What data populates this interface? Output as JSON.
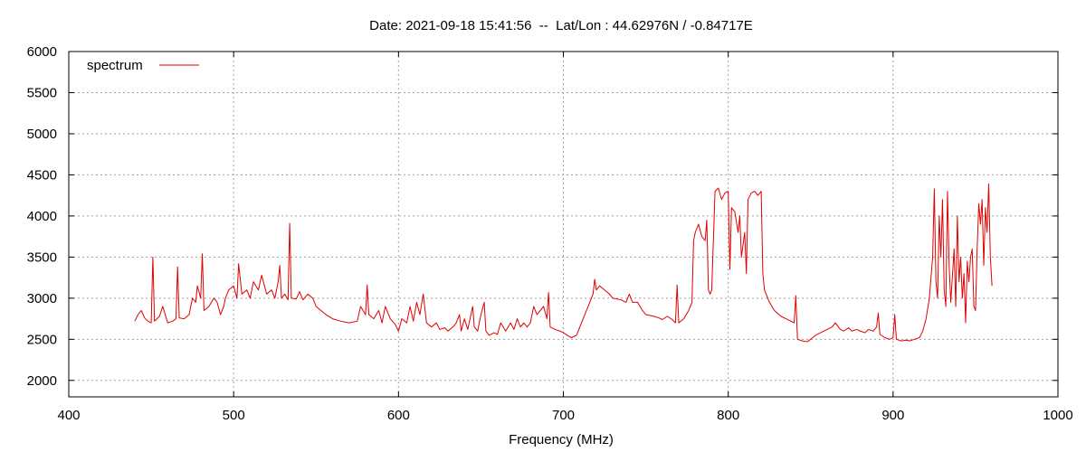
{
  "chart_data": {
    "type": "line",
    "title": "Date: 2021-09-18 15:41:56  --  Lat/Lon : 44.62976N / -0.84717E",
    "xlabel": "Frequency (MHz)",
    "ylabel": "",
    "xlim": [
      400,
      1000
    ],
    "ylim": [
      1800,
      6000
    ],
    "x_ticks": [
      400,
      500,
      600,
      700,
      800,
      900,
      1000
    ],
    "y_ticks": [
      2000,
      2500,
      3000,
      3500,
      4000,
      4500,
      5000,
      5500,
      6000
    ],
    "grid": true,
    "legend_position": "top-left",
    "series": [
      {
        "name": "spectrum",
        "color": "#e00000",
        "points": [
          [
            440,
            2720
          ],
          [
            442,
            2800
          ],
          [
            444,
            2850
          ],
          [
            446,
            2760
          ],
          [
            448,
            2720
          ],
          [
            450,
            2700
          ],
          [
            451,
            3500
          ],
          [
            452,
            2720
          ],
          [
            455,
            2780
          ],
          [
            457,
            2900
          ],
          [
            460,
            2700
          ],
          [
            463,
            2720
          ],
          [
            465,
            2750
          ],
          [
            466,
            3380
          ],
          [
            467,
            2760
          ],
          [
            470,
            2750
          ],
          [
            473,
            2800
          ],
          [
            475,
            3000
          ],
          [
            477,
            2950
          ],
          [
            478,
            3150
          ],
          [
            480,
            3000
          ],
          [
            481,
            3540
          ],
          [
            482,
            2850
          ],
          [
            485,
            2900
          ],
          [
            488,
            3000
          ],
          [
            490,
            2950
          ],
          [
            492,
            2800
          ],
          [
            494,
            2900
          ],
          [
            495,
            3000
          ],
          [
            497,
            3100
          ],
          [
            500,
            3150
          ],
          [
            502,
            3000
          ],
          [
            503,
            3420
          ],
          [
            505,
            3050
          ],
          [
            508,
            3100
          ],
          [
            510,
            3000
          ],
          [
            512,
            3200
          ],
          [
            515,
            3100
          ],
          [
            517,
            3280
          ],
          [
            520,
            3050
          ],
          [
            523,
            3100
          ],
          [
            525,
            3000
          ],
          [
            527,
            3200
          ],
          [
            528,
            3400
          ],
          [
            529,
            3000
          ],
          [
            531,
            3050
          ],
          [
            533,
            2980
          ],
          [
            534,
            3910
          ],
          [
            535,
            3000
          ],
          [
            538,
            2990
          ],
          [
            540,
            3080
          ],
          [
            542,
            2980
          ],
          [
            545,
            3050
          ],
          [
            548,
            3000
          ],
          [
            550,
            2900
          ],
          [
            553,
            2850
          ],
          [
            556,
            2800
          ],
          [
            560,
            2750
          ],
          [
            565,
            2720
          ],
          [
            570,
            2700
          ],
          [
            575,
            2720
          ],
          [
            577,
            2900
          ],
          [
            580,
            2800
          ],
          [
            581,
            3160
          ],
          [
            582,
            2800
          ],
          [
            585,
            2750
          ],
          [
            588,
            2850
          ],
          [
            590,
            2700
          ],
          [
            592,
            2900
          ],
          [
            595,
            2750
          ],
          [
            598,
            2680
          ],
          [
            600,
            2600
          ],
          [
            602,
            2750
          ],
          [
            605,
            2700
          ],
          [
            607,
            2900
          ],
          [
            609,
            2720
          ],
          [
            611,
            2950
          ],
          [
            613,
            2800
          ],
          [
            615,
            3050
          ],
          [
            617,
            2700
          ],
          [
            620,
            2650
          ],
          [
            623,
            2700
          ],
          [
            625,
            2620
          ],
          [
            628,
            2640
          ],
          [
            630,
            2600
          ],
          [
            633,
            2650
          ],
          [
            635,
            2700
          ],
          [
            637,
            2800
          ],
          [
            638,
            2600
          ],
          [
            640,
            2750
          ],
          [
            642,
            2620
          ],
          [
            645,
            2900
          ],
          [
            646,
            2650
          ],
          [
            648,
            2600
          ],
          [
            650,
            2800
          ],
          [
            652,
            2950
          ],
          [
            653,
            2600
          ],
          [
            655,
            2550
          ],
          [
            658,
            2580
          ],
          [
            660,
            2560
          ],
          [
            662,
            2700
          ],
          [
            665,
            2600
          ],
          [
            668,
            2700
          ],
          [
            670,
            2620
          ],
          [
            672,
            2750
          ],
          [
            674,
            2650
          ],
          [
            676,
            2700
          ],
          [
            678,
            2650
          ],
          [
            680,
            2700
          ],
          [
            682,
            2900
          ],
          [
            684,
            2800
          ],
          [
            686,
            2850
          ],
          [
            688,
            2900
          ],
          [
            690,
            2750
          ],
          [
            691,
            3070
          ],
          [
            692,
            2650
          ],
          [
            695,
            2620
          ],
          [
            698,
            2600
          ],
          [
            700,
            2580
          ],
          [
            703,
            2540
          ],
          [
            705,
            2520
          ],
          [
            708,
            2550
          ],
          [
            710,
            2650
          ],
          [
            713,
            2800
          ],
          [
            716,
            2950
          ],
          [
            718,
            3050
          ],
          [
            719,
            3230
          ],
          [
            720,
            3100
          ],
          [
            722,
            3150
          ],
          [
            725,
            3100
          ],
          [
            728,
            3050
          ],
          [
            730,
            3000
          ],
          [
            735,
            2980
          ],
          [
            738,
            2950
          ],
          [
            740,
            3050
          ],
          [
            742,
            2950
          ],
          [
            745,
            2950
          ],
          [
            748,
            2850
          ],
          [
            750,
            2800
          ],
          [
            755,
            2780
          ],
          [
            758,
            2760
          ],
          [
            760,
            2740
          ],
          [
            763,
            2780
          ],
          [
            766,
            2740
          ],
          [
            768,
            2700
          ],
          [
            769,
            3160
          ],
          [
            770,
            2700
          ],
          [
            773,
            2750
          ],
          [
            776,
            2850
          ],
          [
            778,
            2950
          ],
          [
            779,
            3700
          ],
          [
            780,
            3800
          ],
          [
            782,
            3900
          ],
          [
            784,
            3750
          ],
          [
            786,
            3700
          ],
          [
            787,
            3950
          ],
          [
            788,
            3100
          ],
          [
            789,
            3050
          ],
          [
            790,
            3100
          ],
          [
            792,
            4300
          ],
          [
            794,
            4340
          ],
          [
            796,
            4200
          ],
          [
            798,
            4280
          ],
          [
            800,
            4300
          ],
          [
            801,
            3350
          ],
          [
            802,
            4100
          ],
          [
            804,
            4050
          ],
          [
            806,
            3800
          ],
          [
            807,
            4000
          ],
          [
            808,
            3500
          ],
          [
            810,
            3800
          ],
          [
            811,
            3300
          ],
          [
            812,
            4200
          ],
          [
            814,
            4280
          ],
          [
            816,
            4300
          ],
          [
            818,
            4250
          ],
          [
            820,
            4300
          ],
          [
            821,
            3300
          ],
          [
            822,
            3100
          ],
          [
            825,
            2950
          ],
          [
            828,
            2850
          ],
          [
            832,
            2780
          ],
          [
            835,
            2750
          ],
          [
            838,
            2720
          ],
          [
            840,
            2700
          ],
          [
            841,
            3030
          ],
          [
            842,
            2500
          ],
          [
            845,
            2480
          ],
          [
            848,
            2470
          ],
          [
            850,
            2500
          ],
          [
            853,
            2550
          ],
          [
            856,
            2580
          ],
          [
            860,
            2620
          ],
          [
            863,
            2650
          ],
          [
            865,
            2700
          ],
          [
            868,
            2620
          ],
          [
            870,
            2600
          ],
          [
            873,
            2640
          ],
          [
            875,
            2600
          ],
          [
            878,
            2620
          ],
          [
            880,
            2600
          ],
          [
            883,
            2580
          ],
          [
            885,
            2620
          ],
          [
            888,
            2600
          ],
          [
            890,
            2650
          ],
          [
            891,
            2820
          ],
          [
            892,
            2560
          ],
          [
            895,
            2520
          ],
          [
            898,
            2500
          ],
          [
            900,
            2520
          ],
          [
            901,
            2800
          ],
          [
            902,
            2500
          ],
          [
            905,
            2480
          ],
          [
            908,
            2490
          ],
          [
            910,
            2480
          ],
          [
            913,
            2500
          ],
          [
            916,
            2520
          ],
          [
            918,
            2600
          ],
          [
            920,
            2750
          ],
          [
            922,
            3000
          ],
          [
            924,
            3500
          ],
          [
            925,
            4330
          ],
          [
            926,
            3200
          ],
          [
            927,
            3000
          ],
          [
            928,
            4000
          ],
          [
            929,
            3500
          ],
          [
            930,
            4200
          ],
          [
            931,
            3100
          ],
          [
            932,
            2900
          ],
          [
            933,
            4300
          ],
          [
            934,
            3400
          ],
          [
            935,
            2950
          ],
          [
            937,
            3600
          ],
          [
            938,
            2900
          ],
          [
            939,
            4000
          ],
          [
            940,
            3200
          ],
          [
            941,
            3500
          ],
          [
            942,
            3000
          ],
          [
            943,
            3300
          ],
          [
            944,
            2700
          ],
          [
            945,
            3450
          ],
          [
            946,
            3200
          ],
          [
            947,
            3500
          ],
          [
            948,
            3600
          ],
          [
            949,
            2900
          ],
          [
            950,
            2850
          ],
          [
            951,
            3600
          ],
          [
            952,
            4150
          ],
          [
            953,
            3900
          ],
          [
            954,
            4200
          ],
          [
            955,
            3400
          ],
          [
            956,
            4100
          ],
          [
            957,
            3800
          ],
          [
            958,
            4390
          ],
          [
            959,
            3500
          ],
          [
            960,
            3150
          ]
        ]
      }
    ]
  }
}
